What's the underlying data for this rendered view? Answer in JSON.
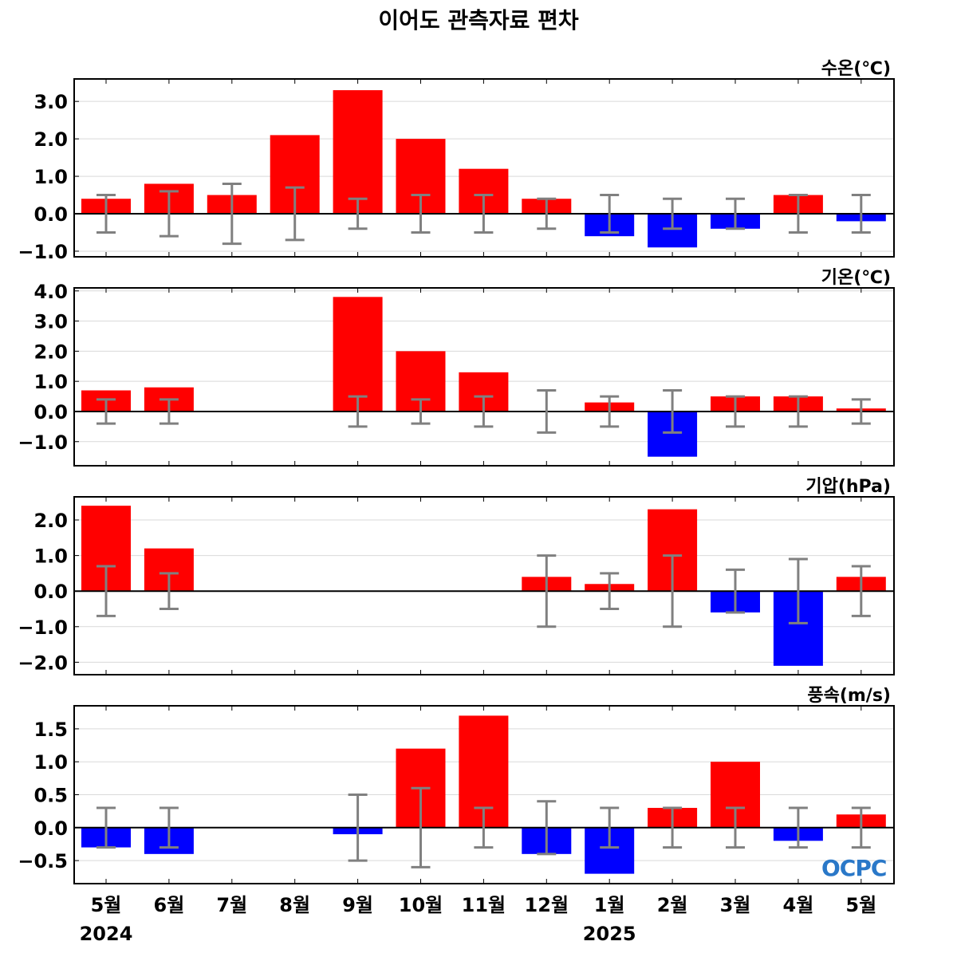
{
  "title": "이어도 관측자료 편차",
  "logo_text": "OCPC",
  "colors": {
    "positive": "#ff0000",
    "negative": "#0000ff",
    "errorbar": "#808080",
    "grid": "#d9d9d9"
  },
  "chart_data": [
    {
      "type": "bar",
      "ylabel": "수온(℃)",
      "categories": [
        "5월",
        "6월",
        "7월",
        "8월",
        "9월",
        "10월",
        "11월",
        "12월",
        "1월",
        "2월",
        "3월",
        "4월",
        "5월"
      ],
      "year_labels": [
        "2024",
        "2025"
      ],
      "values": [
        0.4,
        0.8,
        0.5,
        2.1,
        3.3,
        2.0,
        1.2,
        0.4,
        -0.6,
        -0.9,
        -0.4,
        0.5,
        -0.2
      ],
      "err_low": [
        -0.5,
        -0.6,
        -0.8,
        -0.7,
        -0.4,
        -0.5,
        -0.5,
        -0.4,
        -0.5,
        -0.4,
        -0.4,
        -0.5,
        -0.5
      ],
      "err_high": [
        0.5,
        0.6,
        0.8,
        0.7,
        0.4,
        0.5,
        0.5,
        0.4,
        0.5,
        0.4,
        0.4,
        0.5,
        0.5
      ],
      "ylim": [
        -1.15,
        3.6
      ],
      "ticks": [
        -1.0,
        0.0,
        1.0,
        2.0,
        3.0
      ],
      "tick_labels": [
        "−1.0",
        "0.0",
        "1.0",
        "2.0",
        "3.0"
      ],
      "grid": true
    },
    {
      "type": "bar",
      "ylabel": "기온(℃)",
      "categories": [
        "5월",
        "6월",
        "7월",
        "8월",
        "9월",
        "10월",
        "11월",
        "12월",
        "1월",
        "2월",
        "3월",
        "4월",
        "5월"
      ],
      "values": [
        0.7,
        0.8,
        null,
        null,
        3.8,
        2.0,
        1.3,
        0.0,
        0.3,
        -1.5,
        0.5,
        0.5,
        0.1
      ],
      "err_low": [
        -0.4,
        -0.4,
        null,
        null,
        -0.5,
        -0.4,
        -0.5,
        -0.7,
        -0.5,
        -0.7,
        -0.5,
        -0.5,
        -0.4
      ],
      "err_high": [
        0.4,
        0.4,
        null,
        null,
        0.5,
        0.4,
        0.5,
        0.7,
        0.5,
        0.7,
        0.5,
        0.5,
        0.4
      ],
      "ylim": [
        -1.8,
        4.1
      ],
      "ticks": [
        -1.0,
        0.0,
        1.0,
        2.0,
        3.0,
        4.0
      ],
      "tick_labels": [
        "−1.0",
        "0.0",
        "1.0",
        "2.0",
        "3.0",
        "4.0"
      ],
      "grid": true
    },
    {
      "type": "bar",
      "ylabel": "기압(hPa)",
      "categories": [
        "5월",
        "6월",
        "7월",
        "8월",
        "9월",
        "10월",
        "11월",
        "12월",
        "1월",
        "2월",
        "3월",
        "4월",
        "5월"
      ],
      "values": [
        2.4,
        1.2,
        null,
        null,
        null,
        null,
        null,
        0.4,
        0.2,
        2.3,
        -0.6,
        -2.1,
        0.4
      ],
      "err_low": [
        -0.7,
        -0.5,
        null,
        null,
        null,
        null,
        null,
        -1.0,
        -0.5,
        -1.0,
        -0.6,
        -0.9,
        -0.7
      ],
      "err_high": [
        0.7,
        0.5,
        null,
        null,
        null,
        null,
        null,
        1.0,
        0.5,
        1.0,
        0.6,
        0.9,
        0.7
      ],
      "ylim": [
        -2.35,
        2.65
      ],
      "ticks": [
        -2.0,
        -1.0,
        0.0,
        1.0,
        2.0
      ],
      "tick_labels": [
        "−2.0",
        "−1.0",
        "0.0",
        "1.0",
        "2.0"
      ],
      "grid": true
    },
    {
      "type": "bar",
      "ylabel": "풍속(m/s)",
      "categories": [
        "5월",
        "6월",
        "7월",
        "8월",
        "9월",
        "10월",
        "11월",
        "12월",
        "1월",
        "2월",
        "3월",
        "4월",
        "5월"
      ],
      "values": [
        -0.3,
        -0.4,
        null,
        null,
        -0.1,
        1.2,
        1.7,
        -0.4,
        -0.7,
        0.3,
        1.0,
        -0.2,
        0.2
      ],
      "err_low": [
        -0.3,
        -0.3,
        null,
        null,
        -0.5,
        -0.6,
        -0.3,
        -0.4,
        -0.3,
        -0.3,
        -0.3,
        -0.3,
        -0.3
      ],
      "err_high": [
        0.3,
        0.3,
        null,
        null,
        0.5,
        0.6,
        0.3,
        0.4,
        0.3,
        0.3,
        0.3,
        0.3,
        0.3
      ],
      "ylim": [
        -0.85,
        1.85
      ],
      "ticks": [
        -0.5,
        0.0,
        0.5,
        1.0,
        1.5
      ],
      "tick_labels": [
        "−0.5",
        "0.0",
        "0.5",
        "1.0",
        "1.5"
      ],
      "grid": true
    }
  ]
}
